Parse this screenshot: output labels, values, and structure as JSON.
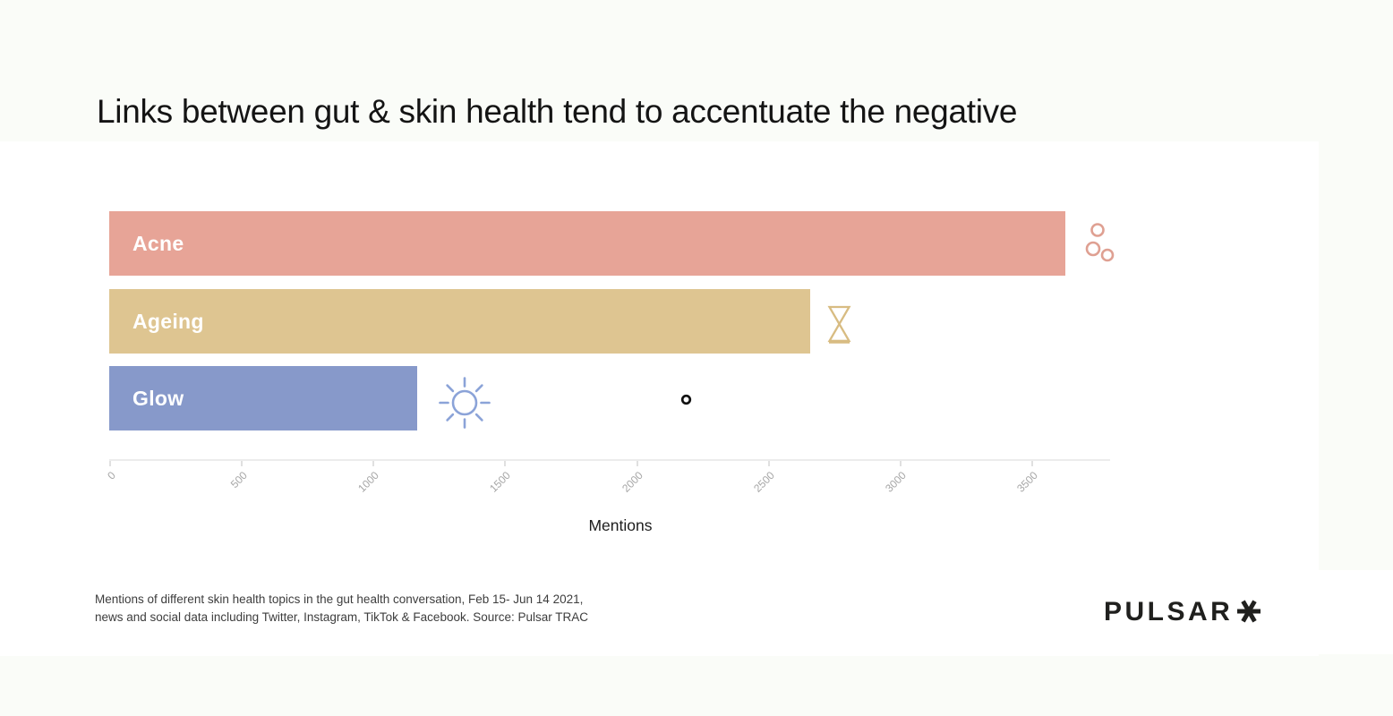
{
  "page": {
    "title": "Links between gut & skin health tend to accentuate the negative",
    "caption_line1": "Mentions of different skin health topics in the gut health conversation, Feb 15- Jun 14 2021,",
    "caption_line2": "news and social data including Twitter, Instagram, TikTok & Facebook. Source: Pulsar TRAC",
    "logo_text": "PULSAR",
    "logo_icon": "asterisk-icon"
  },
  "chart_data": {
    "type": "bar",
    "orientation": "horizontal",
    "title": "Links between gut & skin health tend to accentuate the negative",
    "categories": [
      "Acne",
      "Ageing",
      "Glow"
    ],
    "values": [
      3630,
      2660,
      1170
    ],
    "bar_colors": [
      "#E7A497",
      "#DEC591",
      "#8799CA"
    ],
    "xlabel": "Mentions",
    "ylabel": "",
    "x_ticks": [
      0,
      500,
      1000,
      1500,
      2000,
      2500,
      3000,
      3500
    ],
    "xlim": [
      0,
      3800
    ],
    "grid": false,
    "legend": "none",
    "tick_label_angle": -45,
    "icons": {
      "acne": "dots-icon",
      "ageing": "hourglass-icon",
      "glow": "sun-icon",
      "extra": "dot-icon"
    },
    "icon_colors": {
      "dots": "#DFA092",
      "hourglass": "#D8BC82",
      "sun": "#8BA3D8",
      "dot": "#111111"
    }
  }
}
